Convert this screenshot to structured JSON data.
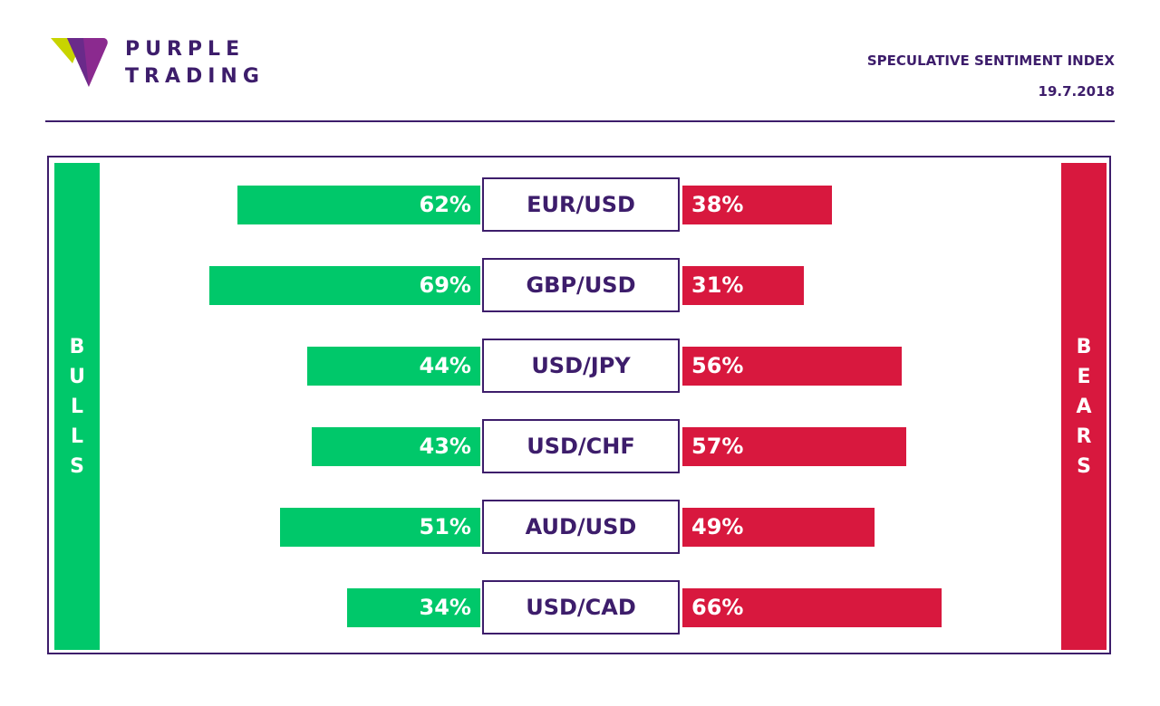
{
  "brand": {
    "line1": "PURPLE",
    "line2": "TRADING",
    "colors": {
      "purple": "#3d1d6b",
      "lime": "#c8d400",
      "violet": "#8b2a8f"
    }
  },
  "header": {
    "title": "SPECULATIVE SENTIMENT INDEX",
    "date": "19.7.2018"
  },
  "sides": {
    "bulls": "BULLS",
    "bears": "BEARS",
    "bulls_color": "#00c86a",
    "bears_color": "#d8183e"
  },
  "chart_data": {
    "type": "bar",
    "categories": [
      "EUR/USD",
      "GBP/USD",
      "USD/JPY",
      "USD/CHF",
      "AUD/USD",
      "USD/CAD"
    ],
    "series": [
      {
        "name": "BULLS",
        "values": [
          62,
          69,
          44,
          43,
          51,
          34
        ]
      },
      {
        "name": "BEARS",
        "values": [
          38,
          31,
          56,
          57,
          49,
          66
        ]
      }
    ],
    "labels": {
      "bulls": [
        "62%",
        "69%",
        "44%",
        "43%",
        "51%",
        "34%"
      ],
      "bears": [
        "38%",
        "31%",
        "56%",
        "57%",
        "49%",
        "66%"
      ]
    }
  }
}
